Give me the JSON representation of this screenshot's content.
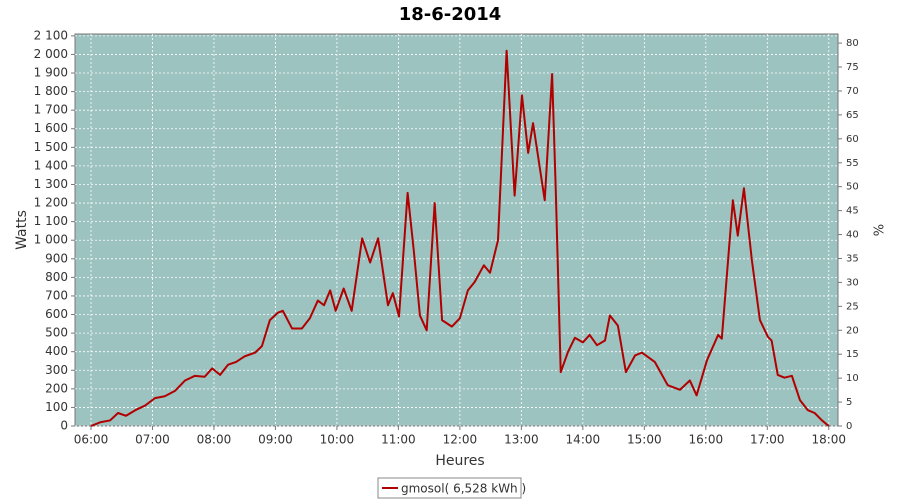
{
  "chart_data": {
    "type": "line",
    "title": "18-6-2014",
    "ylabel": "Watts",
    "y2label": "%",
    "xlabel": "Heures",
    "x": [
      6.0,
      6.15,
      6.31,
      6.44,
      6.57,
      6.72,
      6.88,
      7.04,
      7.2,
      7.37,
      7.53,
      7.69,
      7.85,
      7.97,
      8.1,
      8.23,
      8.36,
      8.5,
      8.67,
      8.78,
      8.91,
      9.04,
      9.12,
      9.27,
      9.43,
      9.56,
      9.69,
      9.79,
      9.89,
      9.98,
      10.11,
      10.24,
      10.41,
      10.54,
      10.67,
      10.83,
      10.91,
      11.01,
      11.15,
      11.25,
      11.35,
      11.46,
      11.59,
      11.71,
      11.87,
      12.0,
      12.13,
      12.24,
      12.39,
      12.49,
      12.62,
      12.76,
      12.89,
      13.01,
      13.11,
      13.19,
      13.38,
      13.5,
      13.56,
      13.64,
      13.76,
      13.87,
      14.0,
      14.11,
      14.23,
      14.36,
      14.44,
      14.57,
      14.7,
      14.85,
      14.96,
      15.17,
      15.38,
      15.58,
      15.74,
      15.85,
      16.02,
      16.2,
      16.26,
      16.44,
      16.52,
      16.62,
      16.75,
      16.88,
      17.01,
      17.07,
      17.17,
      17.28,
      17.4,
      17.53,
      17.66,
      17.77,
      17.89,
      18.0
    ],
    "series": [
      {
        "name": "gmosol( 6,528 kWh )",
        "color": "#b00000",
        "values": [
          0,
          20,
          30,
          70,
          55,
          85,
          110,
          150,
          160,
          190,
          245,
          270,
          265,
          310,
          275,
          330,
          345,
          375,
          395,
          430,
          570,
          610,
          620,
          525,
          525,
          580,
          675,
          650,
          730,
          620,
          740,
          620,
          1010,
          880,
          1010,
          650,
          715,
          590,
          1255,
          945,
          595,
          515,
          1200,
          570,
          535,
          580,
          730,
          775,
          865,
          825,
          1000,
          2020,
          1240,
          1780,
          1470,
          1630,
          1215,
          1895,
          1265,
          290,
          400,
          475,
          450,
          490,
          435,
          460,
          595,
          540,
          290,
          380,
          395,
          345,
          220,
          195,
          245,
          165,
          355,
          490,
          470,
          1215,
          1025,
          1280,
          890,
          570,
          480,
          460,
          275,
          260,
          270,
          140,
          85,
          70,
          30,
          0
        ]
      }
    ],
    "xlim": [
      5.74,
      18.15
    ],
    "xticks": [
      {
        "value": 6,
        "label": "06:00"
      },
      {
        "value": 7,
        "label": "07:00"
      },
      {
        "value": 8,
        "label": "08:00"
      },
      {
        "value": 9,
        "label": "09:00"
      },
      {
        "value": 10,
        "label": "10:00"
      },
      {
        "value": 11,
        "label": "11:00"
      },
      {
        "value": 12,
        "label": "12:00"
      },
      {
        "value": 13,
        "label": "13:00"
      },
      {
        "value": 14,
        "label": "14:00"
      },
      {
        "value": 15,
        "label": "15:00"
      },
      {
        "value": 16,
        "label": "16:00"
      },
      {
        "value": 17,
        "label": "17:00"
      },
      {
        "value": 18,
        "label": "18:00"
      }
    ],
    "ylim": [
      0,
      2110
    ],
    "yticks": [
      0,
      100,
      200,
      300,
      400,
      500,
      600,
      700,
      800,
      900,
      {
        "value": 1000,
        "label": "1 000"
      },
      {
        "value": 1100,
        "label": "1 100"
      },
      {
        "value": 1200,
        "label": "1 200"
      },
      {
        "value": 1300,
        "label": "1 300"
      },
      {
        "value": 1400,
        "label": "1 400"
      },
      {
        "value": 1500,
        "label": "1 500"
      },
      {
        "value": 1600,
        "label": "1 600"
      },
      {
        "value": 1700,
        "label": "1 700"
      },
      {
        "value": 1800,
        "label": "1 800"
      },
      {
        "value": 1900,
        "label": "1 900"
      },
      {
        "value": 2000,
        "label": "2 000"
      },
      {
        "value": 2100,
        "label": "2 100"
      }
    ],
    "y2lim": [
      0,
      81.9
    ],
    "y2ticks": [
      0,
      5,
      10,
      15,
      20,
      25,
      30,
      35,
      40,
      45,
      50,
      55,
      60,
      65,
      70,
      75,
      80
    ],
    "grid": true,
    "background": "#9dc3c0",
    "legend": "bottom"
  }
}
